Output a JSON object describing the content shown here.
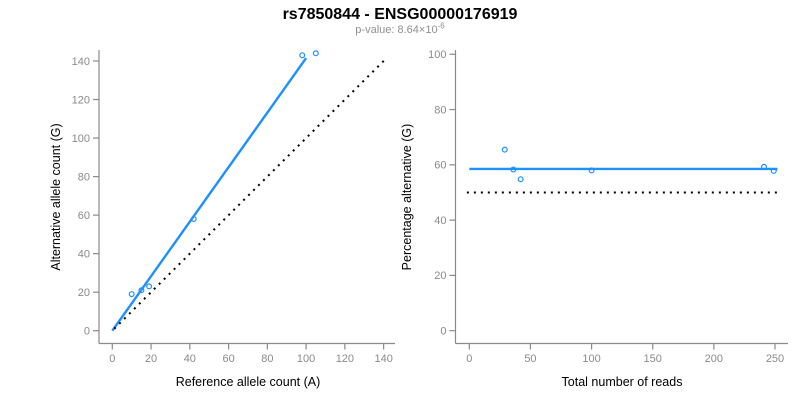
{
  "header": {
    "title": "rs7850844 - ENSG00000176919",
    "subtitle_prefix": "p-value: 8.64×10",
    "subtitle_exponent": "-6"
  },
  "colors": {
    "points_and_fit_blue": "#1E90FF",
    "reference_line_black": "#000000",
    "axis_gray": "#8A8A8A",
    "title_black": "#000000",
    "subtitle_gray": "#8F8F8F",
    "background": "#FFFFFF"
  },
  "chart_data": [
    {
      "id": "allele-count-scatter",
      "type": "scatter",
      "xlabel": "Reference allele count (A)",
      "ylabel": "Alternative allele count (G)",
      "xlim": [
        0,
        140
      ],
      "ylim": [
        0,
        140
      ],
      "xticks": [
        0,
        20,
        40,
        60,
        80,
        100,
        120,
        140
      ],
      "yticks": [
        0,
        20,
        40,
        60,
        80,
        100,
        120,
        140
      ],
      "grid": false,
      "legend": false,
      "point_color": "#1E90FF",
      "points": [
        [
          10,
          19
        ],
        [
          15,
          21
        ],
        [
          19,
          23
        ],
        [
          42,
          58
        ],
        [
          98,
          143
        ],
        [
          105,
          144
        ]
      ],
      "lines": [
        {
          "id": "fit-line",
          "x1": 0,
          "y1": 0,
          "x2": 100,
          "y2": 141.5,
          "color": "#1E90FF",
          "dash": false
        },
        {
          "id": "identity-line",
          "x1": 1,
          "y1": 1,
          "x2": 141.5,
          "y2": 141.5,
          "color": "#000000",
          "dash": true
        }
      ]
    },
    {
      "id": "percentage-scatter",
      "type": "scatter",
      "xlabel": "Total number of reads",
      "ylabel": "Percentage alternative (G)",
      "xlim": [
        0,
        250
      ],
      "ylim": [
        0,
        100
      ],
      "xticks": [
        0,
        50,
        100,
        150,
        200,
        250
      ],
      "yticks": [
        0,
        20,
        40,
        60,
        80,
        100
      ],
      "grid": false,
      "legend": false,
      "point_color": "#1E90FF",
      "points": [
        [
          29,
          65.5
        ],
        [
          36,
          58.3
        ],
        [
          42,
          54.8
        ],
        [
          100,
          58
        ],
        [
          241,
          59.3
        ],
        [
          249,
          57.8
        ]
      ],
      "lines": [
        {
          "id": "mean-percentage-line",
          "x1": 0,
          "y1": 58.5,
          "x2": 252,
          "y2": 58.5,
          "color": "#1E90FF",
          "dash": false
        },
        {
          "id": "fifty-percent-line",
          "x1": -2,
          "y1": 50,
          "x2": 252,
          "y2": 50,
          "color": "#000000",
          "dash": true
        }
      ]
    }
  ]
}
